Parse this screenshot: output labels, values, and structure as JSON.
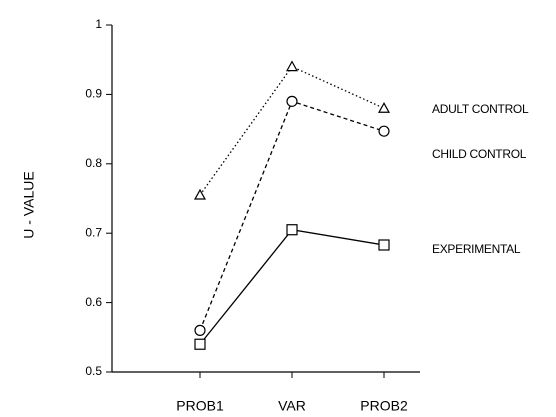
{
  "chart_data": {
    "type": "line",
    "y_label": "U - VALUE",
    "categories": [
      "PROB1",
      "VAR",
      "PROB2"
    ],
    "series": [
      {
        "name": "ADULT CONTROL",
        "color": "#000000",
        "dash": "dotted",
        "marker": "triangle",
        "values": [
          0.755,
          0.94,
          0.88
        ]
      },
      {
        "name": "CHILD CONTROL",
        "color": "#000000",
        "dash": "dashed",
        "marker": "circle",
        "values": [
          0.56,
          0.89,
          0.847
        ]
      },
      {
        "name": "EXPERIMENTAL",
        "color": "#000000",
        "dash": "solid",
        "marker": "square",
        "values": [
          0.54,
          0.705,
          0.683
        ]
      }
    ],
    "ylim": [
      0.5,
      1
    ],
    "yticks": [
      0.5,
      0.6,
      0.7,
      0.8,
      0.9,
      1
    ],
    "grid": false
  }
}
